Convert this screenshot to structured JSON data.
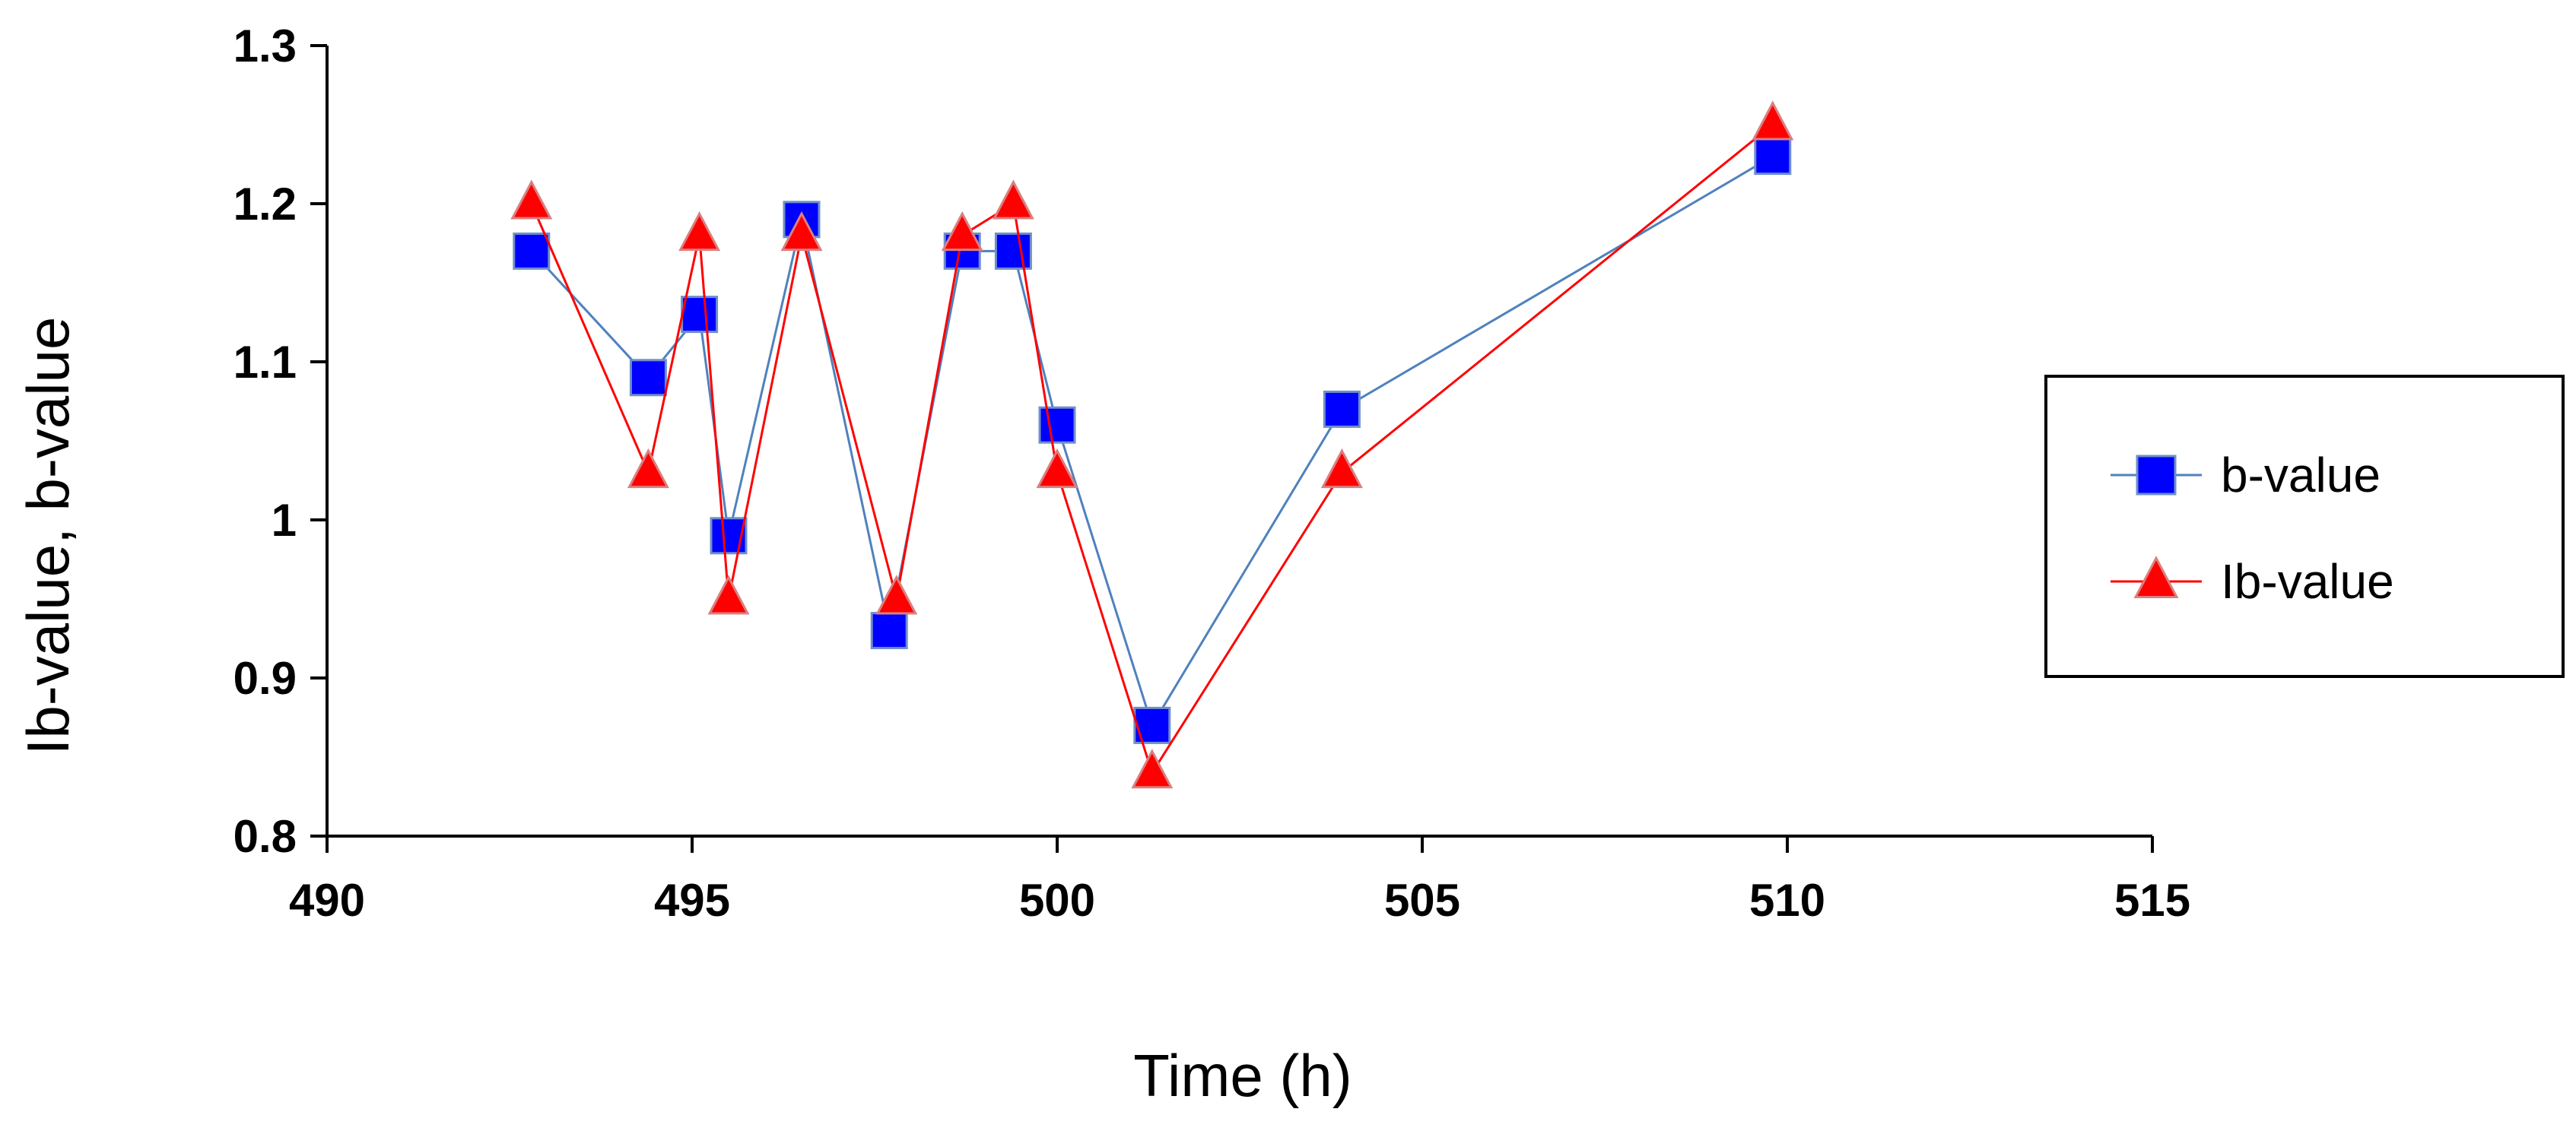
{
  "chart_data": {
    "type": "line",
    "xlabel": "Time (h)",
    "ylabel": "Ib-value, b-value",
    "xlim": [
      490,
      515
    ],
    "ylim": [
      0.8,
      1.3
    ],
    "xticks": [
      490,
      495,
      500,
      505,
      510,
      515
    ],
    "yticks": [
      0.8,
      0.9,
      1,
      1.1,
      1.2,
      1.3
    ],
    "xtick_labels": [
      "490",
      "495",
      "500",
      "505",
      "510",
      "515"
    ],
    "ytick_labels": [
      "0.8",
      "0.9",
      "1",
      "1.1",
      "1.2",
      "1.3"
    ],
    "grid": false,
    "legend_position": "right",
    "series": [
      {
        "name": "b-value",
        "marker": "square",
        "color": "#0000ff",
        "line_color": "#4f81bd",
        "points": [
          {
            "x": 492.8,
            "y": 1.17
          },
          {
            "x": 494.4,
            "y": 1.09
          },
          {
            "x": 495.1,
            "y": 1.13
          },
          {
            "x": 495.5,
            "y": 0.99
          },
          {
            "x": 496.5,
            "y": 1.19
          },
          {
            "x": 497.7,
            "y": 0.93
          },
          {
            "x": 498.7,
            "y": 1.17
          },
          {
            "x": 499.4,
            "y": 1.17
          },
          {
            "x": 500.0,
            "y": 1.06
          },
          {
            "x": 501.3,
            "y": 0.87
          },
          {
            "x": 503.9,
            "y": 1.07
          },
          {
            "x": 509.8,
            "y": 1.23
          }
        ]
      },
      {
        "name": "Ib-value",
        "marker": "triangle",
        "color": "#ff0000",
        "line_color": "#ff0000",
        "points": [
          {
            "x": 492.8,
            "y": 1.2
          },
          {
            "x": 494.4,
            "y": 1.03
          },
          {
            "x": 495.1,
            "y": 1.18
          },
          {
            "x": 495.5,
            "y": 0.95
          },
          {
            "x": 496.5,
            "y": 1.18
          },
          {
            "x": 497.8,
            "y": 0.95
          },
          {
            "x": 498.7,
            "y": 1.18
          },
          {
            "x": 499.4,
            "y": 1.2
          },
          {
            "x": 500.0,
            "y": 1.03
          },
          {
            "x": 501.3,
            "y": 0.84
          },
          {
            "x": 503.9,
            "y": 1.03
          },
          {
            "x": 509.8,
            "y": 1.25
          }
        ]
      }
    ]
  }
}
